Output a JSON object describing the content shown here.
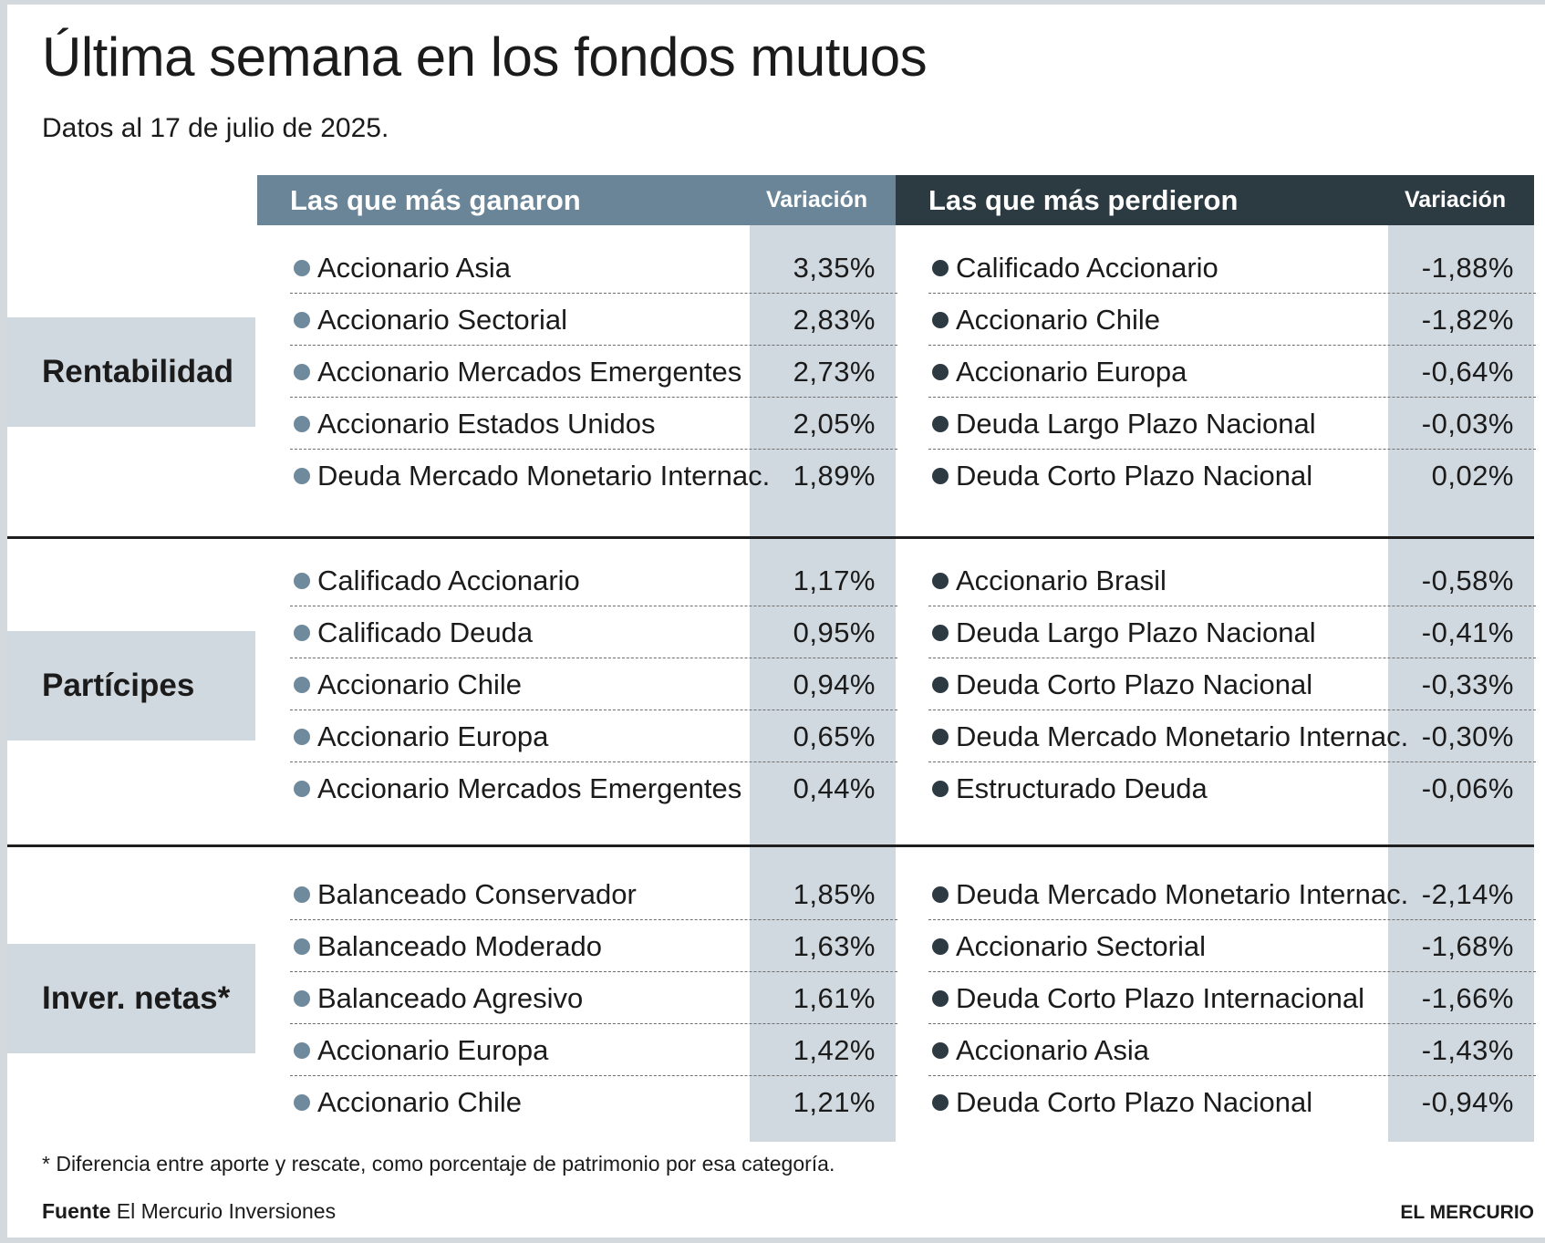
{
  "title": "Última semana en los fondos mutuos",
  "subtitle": "Datos al 17 de julio de 2025.",
  "headers": {
    "gain_title": "Las que más ganaron",
    "lose_title": "Las que más perdieron",
    "variation": "Variación"
  },
  "colors": {
    "gain_header": "#6a8597",
    "lose_header": "#2c3a42",
    "band": "#d1d9e0",
    "gain_dot": "#6f8a9c",
    "lose_dot": "#2d3a42"
  },
  "sections": [
    {
      "label": "Rentabilidad",
      "gainers": [
        {
          "name": "Accionario Asia",
          "value": "3,35%"
        },
        {
          "name": "Accionario Sectorial",
          "value": "2,83%"
        },
        {
          "name": "Accionario Mercados Emergentes",
          "value": "2,73%"
        },
        {
          "name": "Accionario Estados Unidos",
          "value": "2,05%"
        },
        {
          "name": "Deuda Mercado Monetario Internac.",
          "value": "1,89%"
        }
      ],
      "losers": [
        {
          "name": "Calificado Accionario",
          "value": "-1,88%"
        },
        {
          "name": "Accionario Chile",
          "value": "-1,82%"
        },
        {
          "name": "Accionario Europa",
          "value": "-0,64%"
        },
        {
          "name": "Deuda Largo Plazo Nacional",
          "value": "-0,03%"
        },
        {
          "name": "Deuda Corto Plazo Nacional",
          "value": "0,02%"
        }
      ]
    },
    {
      "label": "Partícipes",
      "gainers": [
        {
          "name": "Calificado Accionario",
          "value": "1,17%"
        },
        {
          "name": "Calificado Deuda",
          "value": "0,95%"
        },
        {
          "name": "Accionario Chile",
          "value": "0,94%"
        },
        {
          "name": "Accionario Europa",
          "value": "0,65%"
        },
        {
          "name": "Accionario Mercados Emergentes",
          "value": "0,44%"
        }
      ],
      "losers": [
        {
          "name": "Accionario Brasil",
          "value": "-0,58%"
        },
        {
          "name": "Deuda Largo Plazo Nacional",
          "value": "-0,41%"
        },
        {
          "name": "Deuda Corto Plazo Nacional",
          "value": "-0,33%"
        },
        {
          "name": "Deuda Mercado Monetario Internac.",
          "value": "-0,30%"
        },
        {
          "name": "Estructurado Deuda",
          "value": "-0,06%"
        }
      ]
    },
    {
      "label": "Inver. netas*",
      "gainers": [
        {
          "name": "Balanceado Conservador",
          "value": "1,85%"
        },
        {
          "name": "Balanceado Moderado",
          "value": "1,63%"
        },
        {
          "name": "Balanceado Agresivo",
          "value": "1,61%"
        },
        {
          "name": "Accionario Europa",
          "value": "1,42%"
        },
        {
          "name": "Accionario Chile",
          "value": "1,21%"
        }
      ],
      "losers": [
        {
          "name": "Deuda Mercado Monetario Internac.",
          "value": "-2,14%"
        },
        {
          "name": "Accionario Sectorial",
          "value": "-1,68%"
        },
        {
          "name": "Deuda Corto Plazo Internacional",
          "value": "-1,66%"
        },
        {
          "name": "Accionario Asia",
          "value": "-1,43%"
        },
        {
          "name": "Deuda Corto Plazo Nacional",
          "value": "-0,94%"
        }
      ]
    }
  ],
  "footnote": "* Diferencia entre aporte y rescate, como porcentaje de patrimonio por esa categoría.",
  "source_label": "Fuente",
  "source_text": "El Mercurio Inversiones",
  "brand": "EL MERCURIO"
}
